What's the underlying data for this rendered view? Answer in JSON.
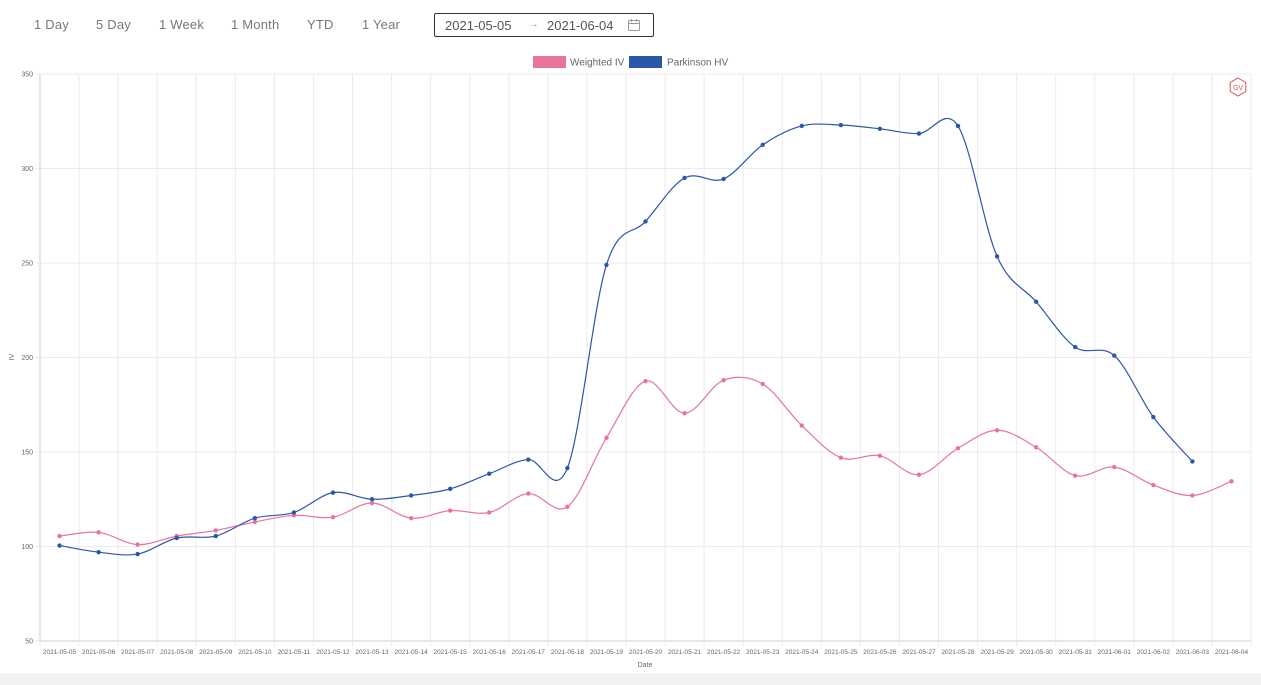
{
  "toolbar": {
    "ranges": [
      "1 Day",
      "5 Day",
      "1 Week",
      "1 Month",
      "YTD",
      "1 Year"
    ],
    "date_from": "2021-05-05",
    "date_to": "2021-06-04",
    "separator": "→"
  },
  "chart_data": {
    "type": "line",
    "xlabel": "Date",
    "ylabel": "IV",
    "ylim": [
      50,
      350
    ],
    "yticks": [
      50,
      100,
      150,
      200,
      250,
      300,
      350
    ],
    "grid": true,
    "legend_position": "top-center",
    "categories": [
      "2021-05-05",
      "2021-05-06",
      "2021-05-07",
      "2021-05-08",
      "2021-05-09",
      "2021-05-10",
      "2021-05-11",
      "2021-05-12",
      "2021-05-13",
      "2021-05-14",
      "2021-05-15",
      "2021-05-16",
      "2021-05-17",
      "2021-05-18",
      "2021-05-19",
      "2021-05-20",
      "2021-05-21",
      "2021-05-22",
      "2021-05-23",
      "2021-05-24",
      "2021-05-25",
      "2021-05-26",
      "2021-05-27",
      "2021-05-28",
      "2021-05-29",
      "2021-05-30",
      "2021-05-31",
      "2021-06-01",
      "2021-06-02",
      "2021-06-03",
      "2021-06-04"
    ],
    "series": [
      {
        "name": "Weighted IV",
        "color": "#e8739f",
        "values": [
          105.5,
          107.5,
          101,
          105.5,
          108.5,
          113,
          116.5,
          115.5,
          123,
          115,
          119,
          118,
          128,
          121,
          157.5,
          187.5,
          170.5,
          188,
          186,
          164,
          147,
          148,
          138,
          152,
          161.5,
          152.5,
          137.5,
          142,
          132.5,
          127,
          134.5
        ]
      },
      {
        "name": "Parkinson HV",
        "color": "#2b57a8",
        "values": [
          100.5,
          97,
          96,
          104.5,
          105.5,
          115,
          118,
          128.5,
          125,
          127,
          130.5,
          138.5,
          146,
          141.5,
          249,
          272,
          295,
          294.5,
          312.5,
          322.5,
          323,
          321,
          318.5,
          322.5,
          253.5,
          229.5,
          205.5,
          201,
          168.5,
          145,
          null
        ]
      }
    ]
  },
  "watermark": {
    "label": "GV",
    "color": "#d9534f"
  }
}
